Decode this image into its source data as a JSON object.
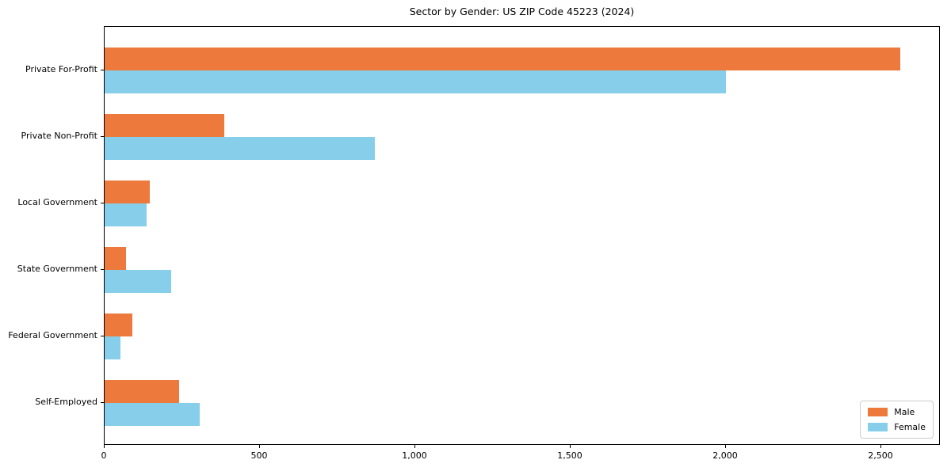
{
  "title": "Sector by Gender: US ZIP Code 45223 (2024)",
  "chart_data": {
    "type": "bar",
    "orientation": "horizontal",
    "title": "Sector by Gender: US ZIP Code 45223 (2024)",
    "xlabel": "",
    "ylabel": "",
    "categories": [
      "Private For-Profit",
      "Private Non-Profit",
      "Local Government",
      "State Government",
      "Federal Government",
      "Self-Employed"
    ],
    "series": [
      {
        "name": "Male",
        "color": "#ED7A3C",
        "values": [
          2560,
          385,
          145,
          70,
          90,
          240
        ]
      },
      {
        "name": "Female",
        "color": "#87CEEB",
        "values": [
          2000,
          870,
          135,
          215,
          50,
          305
        ]
      }
    ],
    "xlim": [
      0,
      2690
    ],
    "xticks": [
      0,
      500,
      1000,
      1500,
      2000,
      2500
    ],
    "xtick_labels": [
      "0",
      "500",
      "1,000",
      "1,500",
      "2,000",
      "2,500"
    ],
    "grid": false,
    "legend_position": "lower right"
  }
}
